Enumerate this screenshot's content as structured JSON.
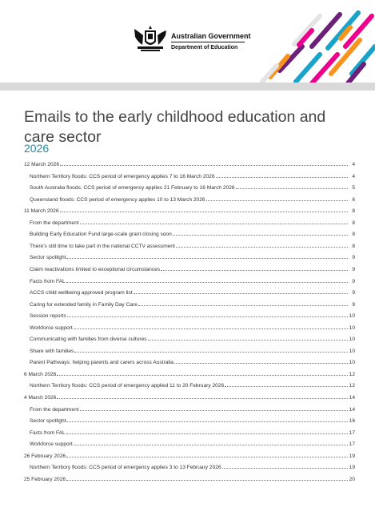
{
  "header": {
    "gov_name": "Australian Government",
    "department": "Department of Education",
    "stripe_colors": [
      "#f7941d",
      "#ec008c",
      "#1aa3c9",
      "#6d2077",
      "#e5e5e5"
    ]
  },
  "title": "Emails to the early childhood education and care sector",
  "year": "2026",
  "toc": [
    {
      "level": 0,
      "text": "12 March 2026",
      "page": "4"
    },
    {
      "level": 1,
      "text": "Northern Territory floods: CCS period of emergency applies 7 to 16 March 2026",
      "page": "4"
    },
    {
      "level": 1,
      "text": "South Australia floods: CCS period of emergency applies 21 February to 16 March 2026",
      "page": "5"
    },
    {
      "level": 1,
      "text": "Queensland floods: CCS period of emergency applies 10 to 13 March 2026",
      "page": "6"
    },
    {
      "level": 0,
      "text": "11 March 2026",
      "page": "8"
    },
    {
      "level": 1,
      "text": "From the department",
      "page": "8"
    },
    {
      "level": 1,
      "text": "Building Early Education Fund large-scale grant closing soon",
      "page": "8"
    },
    {
      "level": 1,
      "text": "There's still time to take part in the national CCTV assessment",
      "page": "8"
    },
    {
      "level": 1,
      "text": "Sector spotlight",
      "page": "9"
    },
    {
      "level": 1,
      "text": "Claim reactivations limited to exceptional circumstances",
      "page": "9"
    },
    {
      "level": 1,
      "text": "Facts from FAL",
      "page": "9"
    },
    {
      "level": 1,
      "text": "ACCS child wellbeing approved program list",
      "page": "9"
    },
    {
      "level": 1,
      "text": "Caring for extended family in Family Day Care",
      "page": "9"
    },
    {
      "level": 1,
      "text": "Session reports",
      "page": "10"
    },
    {
      "level": 1,
      "text": "Workforce support",
      "page": "10"
    },
    {
      "level": 1,
      "text": "Communicating with families from diverse cultures",
      "page": "10"
    },
    {
      "level": 1,
      "text": "Share with families",
      "page": "10"
    },
    {
      "level": 1,
      "text": "Parent Pathways: helping parents and carers across Australia",
      "page": "10"
    },
    {
      "level": 0,
      "text": "6 March 2026",
      "page": "12"
    },
    {
      "level": 1,
      "text": "Northern Territory floods: CCS period of emergency applied 11 to 20 February 2026",
      "page": "12"
    },
    {
      "level": 0,
      "text": "4 March 2026",
      "page": "14"
    },
    {
      "level": 1,
      "text": "From the department",
      "page": "14"
    },
    {
      "level": 1,
      "text": "Sector spotlight",
      "page": "16"
    },
    {
      "level": 1,
      "text": "Facts from FAL",
      "page": "17"
    },
    {
      "level": 1,
      "text": "Workforce support",
      "page": "17"
    },
    {
      "level": 0,
      "text": "26 February 2026",
      "page": "19"
    },
    {
      "level": 1,
      "text": "Northern Territory floods: CCS period of emergency applies 3 to 13 February 2026",
      "page": "19"
    },
    {
      "level": 0,
      "text": "25 February 2026",
      "page": "20"
    }
  ]
}
